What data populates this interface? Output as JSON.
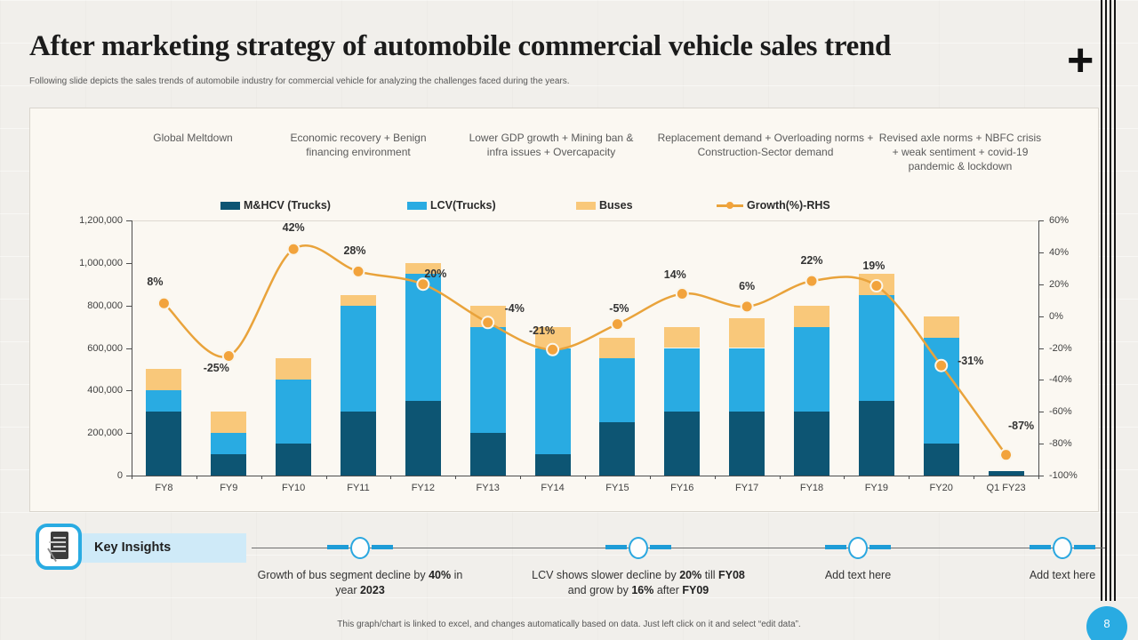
{
  "header": {
    "title": "After marketing strategy of automobile commercial vehicle sales trend",
    "subtitle": "Following slide depicts the sales trends of automobile industry for commercial vehicle for analyzing the challenges faced during the years.",
    "plus_glyph": "+"
  },
  "chart_data": {
    "type": "bar",
    "subtype": "stacked-bar-with-line",
    "title": "",
    "categories": [
      "FY8",
      "FY9",
      "FY10",
      "FY11",
      "FY12",
      "FY13",
      "FY14",
      "FY15",
      "FY16",
      "FY17",
      "FY18",
      "FY19",
      "FY20",
      "Q1 FY23"
    ],
    "series": [
      {
        "name": "M&HCV (Trucks)",
        "color": "#0d5573",
        "values": [
          300000,
          100000,
          150000,
          300000,
          350000,
          200000,
          100000,
          250000,
          300000,
          300000,
          300000,
          350000,
          150000,
          20000
        ]
      },
      {
        "name": "LCV(Trucks)",
        "color": "#29abe2",
        "values": [
          100000,
          100000,
          300000,
          500000,
          600000,
          500000,
          500000,
          300000,
          300000,
          300000,
          400000,
          500000,
          500000,
          0
        ]
      },
      {
        "name": "Buses",
        "color": "#f9c87a",
        "values": [
          100000,
          100000,
          100000,
          50000,
          50000,
          100000,
          100000,
          100000,
          100000,
          140000,
          100000,
          100000,
          100000,
          0
        ]
      }
    ],
    "line_series": {
      "name": "Growth(%)-RHS",
      "axis": "right",
      "color": "#e9a33b",
      "marker_fill": "#f2a33c",
      "marker_stroke": "#faf6ec",
      "values": [
        8,
        -25,
        42,
        28,
        20,
        -4,
        -21,
        -5,
        14,
        6,
        22,
        19,
        -31,
        -87
      ],
      "labels": [
        "8%",
        "-25%",
        "42%",
        "28%",
        "20%",
        "-4%",
        "-21%",
        "-5%",
        "14%",
        "6%",
        "22%",
        "19%",
        "-31%",
        "-87%"
      ]
    },
    "left_axis": {
      "min": 0,
      "max": 1200000,
      "step": 200000,
      "tick_labels": [
        "1,200,000",
        "1,000,000",
        "800,000",
        "600,000",
        "400,000",
        "200,000",
        "0"
      ]
    },
    "right_axis": {
      "min": -100,
      "max": 60,
      "step": 20,
      "tick_labels": [
        "60%",
        "40%",
        "20%",
        "0%",
        "-20%",
        "-40%",
        "-60%",
        "-80%",
        "-100%"
      ]
    },
    "annotations": [
      "Global Meltdown",
      "Economic recovery + Benign financing environment",
      "Lower GDP growth + Mining ban & infra issues + Overcapacity",
      "Replacement demand + Overloading norms + Construction-Sector demand",
      "Revised axle norms + NBFC crisis + weak sentiment + covid-19 pandemic & lockdown"
    ],
    "legend_position": "top",
    "grid": "off"
  },
  "insights": {
    "icon": "notes-pen-icon",
    "label": "Key Insights",
    "items": [
      {
        "segments": [
          {
            "text": "Growth of bus segment decline by ",
            "bold": false
          },
          {
            "text": "40%",
            "bold": true
          },
          {
            "text": " in year ",
            "bold": false
          },
          {
            "text": "2023",
            "bold": true
          }
        ]
      },
      {
        "segments": [
          {
            "text": "LCV shows slower decline by ",
            "bold": false
          },
          {
            "text": "20%",
            "bold": true
          },
          {
            "text": " till ",
            "bold": false
          },
          {
            "text": "FY08",
            "bold": true
          },
          {
            "text": " and grow by ",
            "bold": false
          },
          {
            "text": "16%",
            "bold": true
          },
          {
            "text": " after ",
            "bold": false
          },
          {
            "text": "FY09",
            "bold": true
          }
        ]
      },
      {
        "segments": [
          {
            "text": "Add text here",
            "bold": false
          }
        ]
      },
      {
        "segments": [
          {
            "text": "Add text here",
            "bold": false
          }
        ]
      }
    ]
  },
  "footer": {
    "note": "This graph/chart is linked to excel, and changes automatically based on data. Just left click on it and select “edit data”.",
    "page_number": "8"
  },
  "colors": {
    "accent_blue": "#29abe2",
    "timeline_blue": "#1e9cd7",
    "mhcv": "#0d5573",
    "lcv": "#29abe2",
    "buses": "#f9c87a",
    "growth_line": "#e9a33b"
  }
}
